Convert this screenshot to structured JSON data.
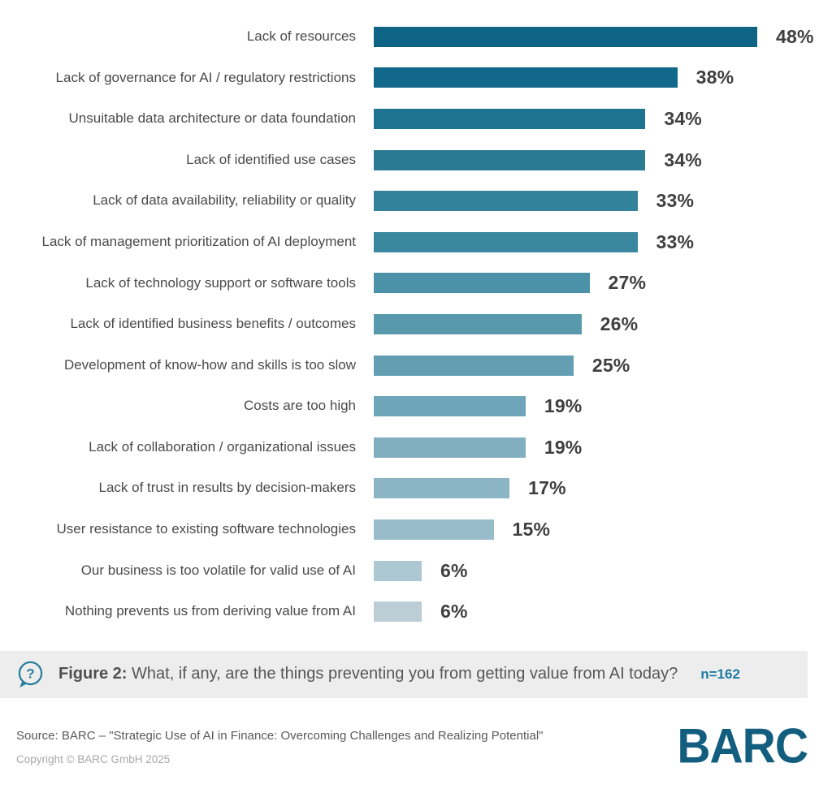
{
  "chart_data": {
    "type": "bar",
    "orientation": "horizontal",
    "unit": "%",
    "xlim": [
      0,
      48
    ],
    "grid": false,
    "legend": false,
    "categories": [
      "Lack of resources",
      "Lack of governance for AI / regulatory restrictions",
      "Unsuitable data architecture or data foundation",
      "Lack of identified use cases",
      "Lack of data availability, reliability or quality",
      "Lack of management prioritization of AI deployment",
      "Lack of technology support or software tools",
      "Lack of identified business benefits / outcomes",
      "Development of know-how and skills is too slow",
      "Costs are too high",
      "Lack of collaboration / organizational issues",
      "Lack of trust in results by decision-makers",
      "User resistance to existing software technologies",
      "Our business is too volatile for valid use of AI",
      "Nothing prevents us from deriving value from AI"
    ],
    "values": [
      48,
      38,
      34,
      34,
      33,
      33,
      27,
      26,
      25,
      19,
      19,
      17,
      15,
      6,
      6
    ],
    "value_labels": [
      "48%",
      "38%",
      "34%",
      "34%",
      "33%",
      "33%",
      "27%",
      "26%",
      "25%",
      "19%",
      "19%",
      "17%",
      "15%",
      "6%",
      "6%"
    ],
    "bar_colors": [
      "#0d6484",
      "#11688a",
      "#1d7390",
      "#2a7a94",
      "#33829b",
      "#3b87a0",
      "#4b91a7",
      "#5899ae",
      "#639eb3",
      "#6fa5b9",
      "#82afc0",
      "#8cb5c4",
      "#98bcca",
      "#aec8d3",
      "#bccdd6"
    ]
  },
  "caption": {
    "icon": "question-speech-bubble-icon",
    "icon_color": "#2a7f9e",
    "background": "#ededed",
    "figure_label": "Figure 2:",
    "text": " What, if any, are the things preventing you from getting value from AI today?",
    "sample_size": "n=162",
    "sample_size_color": "#1f7ba1"
  },
  "footer": {
    "source": "Source: BARC – \"Strategic Use of AI in Finance: Overcoming Challenges and Realizing Potential\"",
    "copyright": "Copyright © BARC GmbH 2025",
    "logo_text": "BARC",
    "logo_color": "#135e7f"
  }
}
